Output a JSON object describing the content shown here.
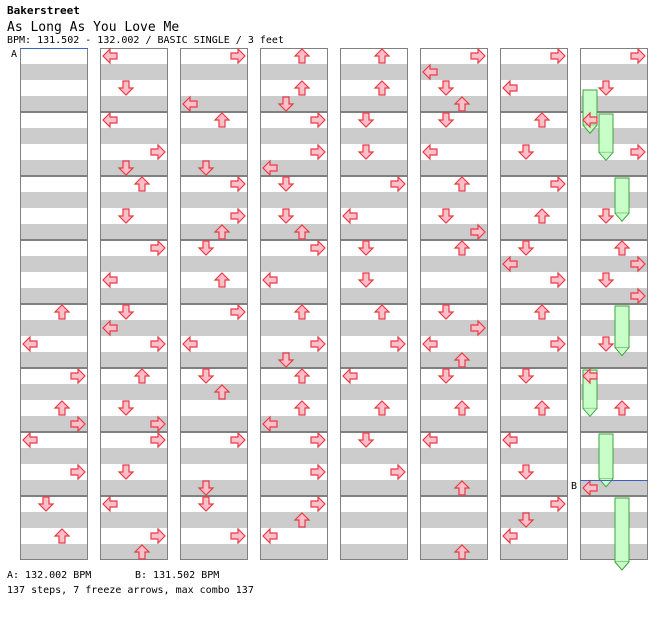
{
  "header": {
    "artist": "Bakerstreet",
    "title": "As Long As You Love Me",
    "info": "BPM: 131.502 - 132.002 / BASIC SINGLE / 3 feet"
  },
  "footer": {
    "bpm_a": "A: 132.002 BPM",
    "bpm_b": "B: 131.502 BPM",
    "stats": "137 steps, 7 freeze arrows, max combo 137"
  },
  "colors": {
    "arrow_fill": "#ffc0c8",
    "arrow_stroke": "#e83848",
    "freeze_fill": "#c8ffc8",
    "freeze_stroke": "#40a040",
    "stripe": "#cccccc",
    "marker_line": "#4060c0"
  },
  "markers": [
    {
      "label": "A",
      "column": 0,
      "measure": 0,
      "row": 0
    },
    {
      "label": "B",
      "column": 7,
      "measure": 6,
      "row": 3
    }
  ],
  "columns": [
    [
      {
        "m": 0,
        "r": []
      },
      {
        "m": 1,
        "r": []
      },
      {
        "m": 2,
        "r": []
      },
      {
        "m": 3,
        "r": []
      },
      {
        "m": 4,
        "r": [
          [
            0.5,
            "U"
          ],
          [
            2.5,
            "L"
          ]
        ]
      },
      {
        "m": 5,
        "r": [
          [
            0.5,
            "R"
          ],
          [
            2.5,
            "U"
          ],
          [
            3.5,
            "R"
          ]
        ]
      },
      {
        "m": 6,
        "r": [
          [
            0.5,
            "L"
          ],
          [
            2.5,
            "R"
          ]
        ]
      },
      {
        "m": 7,
        "r": [
          [
            0.5,
            "D"
          ],
          [
            2.5,
            "U"
          ]
        ]
      }
    ],
    [
      {
        "m": 0,
        "r": [
          [
            0.5,
            "L"
          ],
          [
            2.5,
            "D"
          ]
        ]
      },
      {
        "m": 1,
        "r": [
          [
            0.5,
            "L"
          ],
          [
            2.5,
            "R"
          ],
          [
            3.5,
            "D"
          ]
        ]
      },
      {
        "m": 2,
        "r": [
          [
            0.5,
            "U"
          ],
          [
            2.5,
            "D"
          ]
        ]
      },
      {
        "m": 3,
        "r": [
          [
            0.5,
            "R"
          ],
          [
            2.5,
            "L"
          ]
        ]
      },
      {
        "m": 4,
        "r": [
          [
            0.5,
            "D"
          ],
          [
            1.5,
            "L"
          ],
          [
            2.5,
            "R"
          ]
        ]
      },
      {
        "m": 5,
        "r": [
          [
            0.5,
            "U"
          ],
          [
            2.5,
            "D"
          ],
          [
            3.5,
            "R"
          ]
        ]
      },
      {
        "m": 6,
        "r": [
          [
            0.5,
            "R"
          ],
          [
            2.5,
            "D"
          ]
        ]
      },
      {
        "m": 7,
        "r": [
          [
            0.5,
            "L"
          ],
          [
            2.5,
            "R"
          ],
          [
            3.5,
            "U"
          ]
        ]
      }
    ],
    [
      {
        "m": 0,
        "r": [
          [
            0.5,
            "R"
          ],
          [
            3.5,
            "L"
          ]
        ]
      },
      {
        "m": 1,
        "r": [
          [
            0.5,
            "U"
          ],
          [
            3.5,
            "D"
          ]
        ]
      },
      {
        "m": 2,
        "r": [
          [
            0.5,
            "R"
          ],
          [
            2.5,
            "R"
          ],
          [
            3.5,
            "U"
          ]
        ]
      },
      {
        "m": 3,
        "r": [
          [
            0.5,
            "D"
          ],
          [
            2.5,
            "U"
          ]
        ]
      },
      {
        "m": 4,
        "r": [
          [
            0.5,
            "R"
          ],
          [
            2.5,
            "L"
          ]
        ]
      },
      {
        "m": 5,
        "r": [
          [
            0.5,
            "D"
          ],
          [
            1.5,
            "U"
          ]
        ]
      },
      {
        "m": 6,
        "r": [
          [
            0.5,
            "R"
          ],
          [
            3.5,
            "D"
          ]
        ]
      },
      {
        "m": 7,
        "r": [
          [
            0.5,
            "D"
          ],
          [
            2.5,
            "R"
          ]
        ]
      }
    ],
    [
      {
        "m": 0,
        "r": [
          [
            0.5,
            "U"
          ],
          [
            2.5,
            "U"
          ],
          [
            3.5,
            "D"
          ]
        ]
      },
      {
        "m": 1,
        "r": [
          [
            0.5,
            "R"
          ],
          [
            2.5,
            "R"
          ],
          [
            3.5,
            "L"
          ]
        ]
      },
      {
        "m": 2,
        "r": [
          [
            0.5,
            "D"
          ],
          [
            2.5,
            "D"
          ],
          [
            3.5,
            "U"
          ]
        ]
      },
      {
        "m": 3,
        "r": [
          [
            0.5,
            "R"
          ],
          [
            2.5,
            "L"
          ]
        ]
      },
      {
        "m": 4,
        "r": [
          [
            0.5,
            "U"
          ],
          [
            2.5,
            "R"
          ],
          [
            3.5,
            "D"
          ]
        ]
      },
      {
        "m": 5,
        "r": [
          [
            0.5,
            "U"
          ],
          [
            2.5,
            "U"
          ],
          [
            3.5,
            "L"
          ]
        ]
      },
      {
        "m": 6,
        "r": [
          [
            0.5,
            "R"
          ],
          [
            2.5,
            "R"
          ]
        ]
      },
      {
        "m": 7,
        "r": [
          [
            0.5,
            "R"
          ],
          [
            1.5,
            "U"
          ],
          [
            2.5,
            "L"
          ]
        ]
      }
    ],
    [
      {
        "m": 0,
        "r": [
          [
            0.5,
            "U"
          ],
          [
            2.5,
            "U"
          ]
        ]
      },
      {
        "m": 1,
        "r": [
          [
            0.5,
            "D"
          ],
          [
            2.5,
            "D"
          ]
        ]
      },
      {
        "m": 2,
        "r": [
          [
            0.5,
            "R"
          ],
          [
            2.5,
            "L"
          ]
        ]
      },
      {
        "m": 3,
        "r": [
          [
            0.5,
            "D"
          ],
          [
            2.5,
            "D"
          ]
        ]
      },
      {
        "m": 4,
        "r": [
          [
            0.5,
            "U"
          ],
          [
            2.5,
            "R"
          ]
        ]
      },
      {
        "m": 5,
        "r": [
          [
            0.5,
            "L"
          ],
          [
            2.5,
            "U"
          ]
        ]
      },
      {
        "m": 6,
        "r": [
          [
            0.5,
            "D"
          ],
          [
            2.5,
            "R"
          ]
        ]
      },
      {
        "m": 7,
        "r": []
      }
    ],
    [
      {
        "m": 0,
        "r": [
          [
            0.5,
            "R"
          ],
          [
            1.5,
            "L"
          ],
          [
            2.5,
            "D"
          ],
          [
            3.5,
            "U"
          ]
        ]
      },
      {
        "m": 1,
        "r": [
          [
            0.5,
            "D"
          ],
          [
            2.5,
            "L"
          ]
        ]
      },
      {
        "m": 2,
        "r": [
          [
            0.5,
            "U"
          ],
          [
            2.5,
            "D"
          ],
          [
            3.5,
            "R"
          ]
        ]
      },
      {
        "m": 3,
        "r": [
          [
            0.5,
            "U"
          ]
        ]
      },
      {
        "m": 4,
        "r": [
          [
            0.5,
            "D"
          ],
          [
            1.5,
            "R"
          ],
          [
            2.5,
            "L"
          ],
          [
            3.5,
            "U"
          ]
        ]
      },
      {
        "m": 5,
        "r": [
          [
            0.5,
            "D"
          ],
          [
            2.5,
            "U"
          ]
        ]
      },
      {
        "m": 6,
        "r": [
          [
            0.5,
            "L"
          ],
          [
            3.5,
            "U"
          ]
        ]
      },
      {
        "m": 7,
        "r": [
          [
            3.5,
            "U"
          ]
        ]
      }
    ],
    [
      {
        "m": 0,
        "r": [
          [
            0.5,
            "R"
          ],
          [
            2.5,
            "L"
          ]
        ]
      },
      {
        "m": 1,
        "r": [
          [
            0.5,
            "U"
          ],
          [
            2.5,
            "D"
          ]
        ]
      },
      {
        "m": 2,
        "r": [
          [
            0.5,
            "R"
          ],
          [
            2.5,
            "U"
          ]
        ]
      },
      {
        "m": 3,
        "r": [
          [
            0.5,
            "D"
          ],
          [
            1.5,
            "L"
          ],
          [
            2.5,
            "R"
          ]
        ]
      },
      {
        "m": 4,
        "r": [
          [
            0.5,
            "U"
          ],
          [
            2.5,
            "R"
          ]
        ]
      },
      {
        "m": 5,
        "r": [
          [
            0.5,
            "D"
          ],
          [
            2.5,
            "U"
          ]
        ]
      },
      {
        "m": 6,
        "r": [
          [
            0.5,
            "L"
          ],
          [
            2.5,
            "D"
          ]
        ]
      },
      {
        "m": 7,
        "r": [
          [
            0.5,
            "R"
          ],
          [
            1.5,
            "D"
          ],
          [
            2.5,
            "L"
          ]
        ]
      }
    ],
    [
      {
        "m": 0,
        "r": [
          [
            0.5,
            "R"
          ],
          [
            2.5,
            "D"
          ]
        ],
        "f": [
          [
            0,
            3.0,
            2.2
          ]
        ]
      },
      {
        "m": 1,
        "r": [
          [
            0.5,
            "L"
          ],
          [
            2.5,
            "R"
          ]
        ],
        "f": [
          [
            1,
            0.5,
            2.4
          ]
        ]
      },
      {
        "m": 2,
        "r": [
          [
            2.5,
            "D"
          ]
        ],
        "f": [
          [
            2,
            0.5,
            2.2
          ]
        ]
      },
      {
        "m": 3,
        "r": [
          [
            0.5,
            "U"
          ],
          [
            1.5,
            "R"
          ],
          [
            2.5,
            "D"
          ],
          [
            3.5,
            "R"
          ]
        ]
      },
      {
        "m": 4,
        "r": [
          [
            2.5,
            "D"
          ]
        ],
        "f": [
          [
            2,
            0.5,
            2.6
          ]
        ]
      },
      {
        "m": 5,
        "r": [
          [
            0.5,
            "L"
          ],
          [
            2.5,
            "U"
          ]
        ],
        "f": [
          [
            0,
            0.5,
            2.4
          ]
        ]
      },
      {
        "m": 6,
        "r": [
          [
            3.5,
            "L"
          ]
        ],
        "f": [
          [
            1,
            0.5,
            2.8
          ]
        ]
      },
      {
        "m": 7,
        "r": [],
        "f": [
          [
            2,
            0.5,
            4.0
          ]
        ]
      }
    ]
  ]
}
